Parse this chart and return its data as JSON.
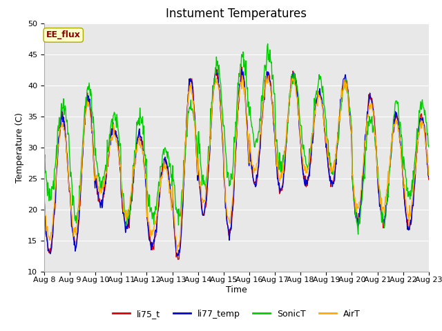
{
  "title": "Instument Temperatures",
  "xlabel": "Time",
  "ylabel": "Temperature (C)",
  "ylim": [
    10,
    50
  ],
  "x_tick_labels": [
    "Aug 8",
    "Aug 9",
    "Aug 10",
    "Aug 11",
    "Aug 12",
    "Aug 13",
    "Aug 14",
    "Aug 15",
    "Aug 16",
    "Aug 17",
    "Aug 18",
    "Aug 19",
    "Aug 20",
    "Aug 21",
    "Aug 22",
    "Aug 23"
  ],
  "series_colors": {
    "li75_t": "#dd0000",
    "li77_temp": "#0000cc",
    "SonicT": "#00cc00",
    "AirT": "#ffaa00"
  },
  "annotation_text": "EE_flux",
  "annotation_color": "#880000",
  "annotation_bg": "#ffffcc",
  "annotation_edge": "#aaaa00",
  "background_color": "#e8e8e8",
  "fig_bg": "#ffffff",
  "title_fontsize": 12,
  "axis_label_fontsize": 9,
  "tick_fontsize": 8,
  "legend_fontsize": 9,
  "day_mins_base": [
    13,
    14,
    21,
    17,
    14,
    12,
    19,
    16,
    24,
    23,
    24,
    24,
    18,
    18,
    17
  ],
  "day_maxs_base": [
    35,
    38,
    33,
    32,
    28,
    41,
    42,
    42,
    42,
    42,
    39,
    41,
    38,
    35,
    35
  ],
  "sonic_day_mins": [
    22,
    19,
    24,
    18,
    19,
    19,
    24,
    25,
    31,
    27,
    27,
    26,
    18,
    18,
    22
  ],
  "sonic_day_maxs": [
    37,
    40,
    35,
    35,
    30,
    37,
    43,
    45,
    45,
    41,
    41,
    40,
    35,
    37,
    37
  ],
  "n_days": 15,
  "pts_per_day": 48
}
